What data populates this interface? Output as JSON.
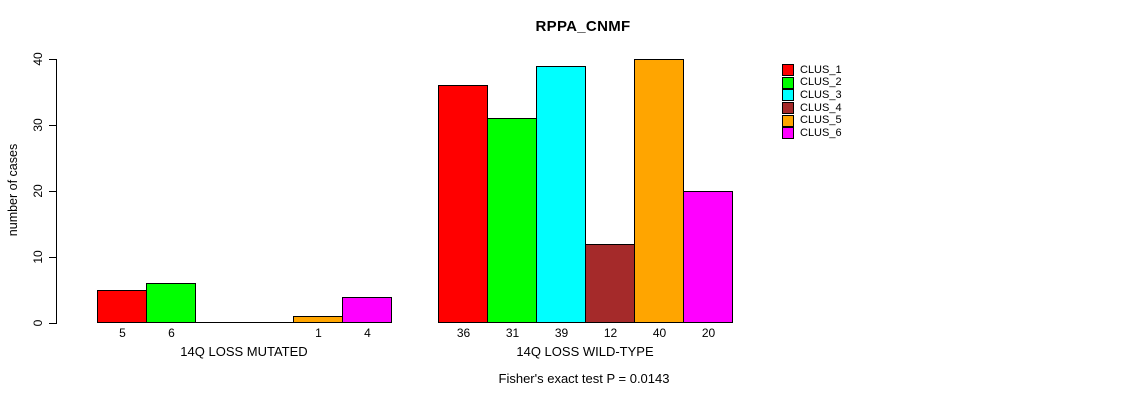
{
  "title": "RPPA_CNMF",
  "chart_data": {
    "type": "bar",
    "title": "RPPA_CNMF",
    "xlabel": "",
    "ylabel": "number of cases",
    "ylim": [
      0,
      40
    ],
    "yticks": [
      "0",
      "10",
      "20",
      "30",
      "40"
    ],
    "grid": false,
    "annotation": "Fisher's exact test P = 0.0143",
    "series_colors": [
      "#FF0000",
      "#00FF00",
      "#00FFFF",
      "#A52A2A",
      "#FFA500",
      "#FF00FF"
    ],
    "groups": [
      {
        "label": "14Q LOSS MUTATED",
        "values": [
          5,
          6,
          0,
          0,
          1,
          4
        ],
        "bar_labels": [
          "5",
          "6",
          "",
          "",
          "1",
          "4"
        ]
      },
      {
        "label": "14Q LOSS WILD-TYPE",
        "values": [
          36,
          31,
          39,
          12,
          40,
          20
        ],
        "bar_labels": [
          "36",
          "31",
          "39",
          "12",
          "40",
          "20"
        ]
      }
    ],
    "legend": {
      "position": "right",
      "entries": [
        {
          "label": "CLUS_1",
          "color": "#FF0000"
        },
        {
          "label": "CLUS_2",
          "color": "#00FF00"
        },
        {
          "label": "CLUS_3",
          "color": "#00FFFF"
        },
        {
          "label": "CLUS_4",
          "color": "#A52A2A"
        },
        {
          "label": "CLUS_5",
          "color": "#FFA500"
        },
        {
          "label": "CLUS_6",
          "color": "#FF00FF"
        }
      ]
    }
  }
}
